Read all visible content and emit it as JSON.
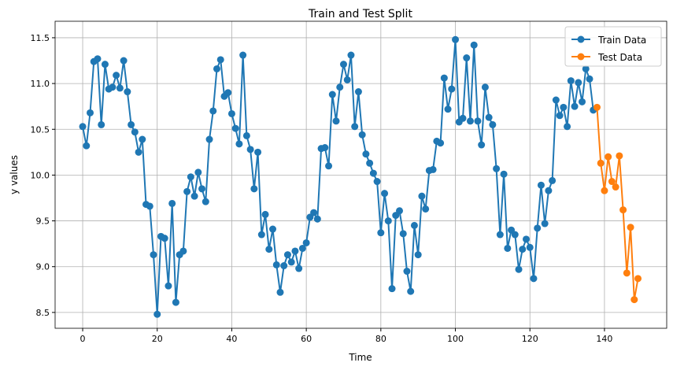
{
  "chart_data": {
    "type": "line",
    "title": "Train and Test Split",
    "xlabel": "Time",
    "ylabel": "y values",
    "xlim": [
      -7.4,
      156.7
    ],
    "ylim": [
      8.327,
      11.68
    ],
    "xticks": [
      0,
      20,
      40,
      60,
      80,
      100,
      120,
      140
    ],
    "xtick_labels": [
      "0",
      "20",
      "40",
      "60",
      "80",
      "100",
      "120",
      "140"
    ],
    "yticks": [
      8.5,
      9.0,
      9.5,
      10.0,
      10.5,
      11.0,
      11.5
    ],
    "ytick_labels": [
      "8.5",
      "9.0",
      "9.5",
      "10.0",
      "10.5",
      "11.0",
      "11.5"
    ],
    "grid": true,
    "legend_position": "top-right",
    "series": [
      {
        "name": "Train Data",
        "color": "#1f77b4",
        "x_start": 0,
        "values": [
          10.53,
          10.32,
          10.68,
          11.24,
          11.27,
          10.55,
          11.21,
          10.94,
          10.96,
          11.09,
          10.95,
          11.25,
          10.91,
          10.55,
          10.47,
          10.25,
          10.39,
          9.68,
          9.66,
          9.13,
          8.48,
          9.33,
          9.31,
          8.79,
          9.69,
          8.61,
          9.13,
          9.17,
          9.82,
          9.98,
          9.77,
          10.03,
          9.85,
          9.71,
          10.39,
          10.7,
          11.16,
          11.26,
          10.86,
          10.9,
          10.67,
          10.51,
          10.34,
          11.31,
          10.43,
          10.28,
          9.85,
          10.25,
          9.35,
          9.57,
          9.19,
          9.41,
          9.02,
          8.72,
          9.01,
          9.13,
          9.05,
          9.17,
          8.98,
          9.2,
          9.26,
          9.54,
          9.59,
          9.52,
          10.29,
          10.3,
          10.1,
          10.88,
          10.59,
          10.96,
          11.21,
          11.04,
          11.31,
          10.53,
          10.91,
          10.44,
          10.23,
          10.13,
          10.02,
          9.93,
          9.37,
          9.8,
          9.5,
          8.76,
          9.56,
          9.61,
          9.36,
          8.95,
          8.73,
          9.45,
          9.13,
          9.77,
          9.63,
          10.05,
          10.06,
          10.37,
          10.35,
          11.06,
          10.72,
          10.94,
          11.48,
          10.58,
          10.62,
          11.28,
          10.59,
          11.42,
          10.59,
          10.33,
          10.96,
          10.63,
          10.55,
          10.07,
          9.35,
          10.01,
          9.2,
          9.4,
          9.35,
          8.97,
          9.19,
          9.3,
          9.21,
          8.87,
          9.42,
          9.89,
          9.47,
          9.83,
          9.94,
          10.82,
          10.65,
          10.74,
          10.53,
          11.03,
          10.75,
          11.01,
          10.8,
          11.16,
          11.05,
          10.71
        ]
      },
      {
        "name": "Test Data",
        "color": "#ff7f0e",
        "x_start": 138,
        "values": [
          10.74,
          10.13,
          9.83,
          10.2,
          9.93,
          9.87,
          10.21,
          9.62,
          8.93,
          9.43,
          8.64,
          8.87
        ]
      }
    ]
  }
}
